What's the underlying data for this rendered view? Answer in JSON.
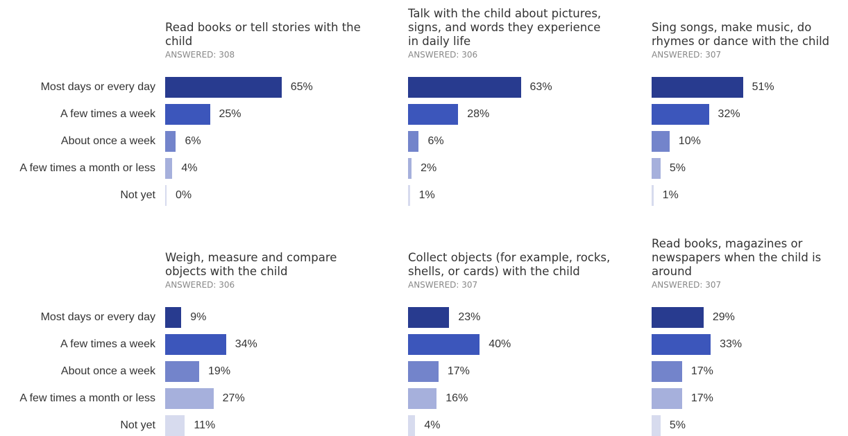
{
  "chart_data": {
    "type": "bar",
    "orientation": "horizontal",
    "categories": [
      "Most days or every day",
      "A few times a week",
      "About once a week",
      "A few times a month or less",
      "Not yet"
    ],
    "bar_colors": [
      "#283b8f",
      "#3c56bb",
      "#7384cb",
      "#a6b0dc",
      "#d7dbee"
    ],
    "value_suffix": "%",
    "panels": [
      {
        "title": "Read books or tell stories with the child",
        "answered": "ANSWERED: 308",
        "values": [
          65,
          25,
          6,
          4,
          0
        ]
      },
      {
        "title": "Talk with the child about pictures, signs, and words they experience in daily life",
        "answered": "ANSWERED: 306",
        "values": [
          63,
          28,
          6,
          2,
          1
        ]
      },
      {
        "title": "Sing songs, make music, do rhymes or dance with the child",
        "answered": "ANSWERED: 307",
        "values": [
          51,
          32,
          10,
          5,
          1
        ]
      },
      {
        "title": "Weigh, measure and compare objects with the child",
        "answered": "ANSWERED: 306",
        "values": [
          9,
          34,
          19,
          27,
          11
        ]
      },
      {
        "title": "Collect objects (for example, rocks, shells, or cards) with the child",
        "answered": "ANSWERED: 307",
        "values": [
          23,
          40,
          17,
          16,
          4
        ]
      },
      {
        "title": "Read books, magazines or newspapers when the child is around",
        "answered": "ANSWERED: 307",
        "values": [
          29,
          33,
          17,
          17,
          5
        ]
      }
    ]
  }
}
